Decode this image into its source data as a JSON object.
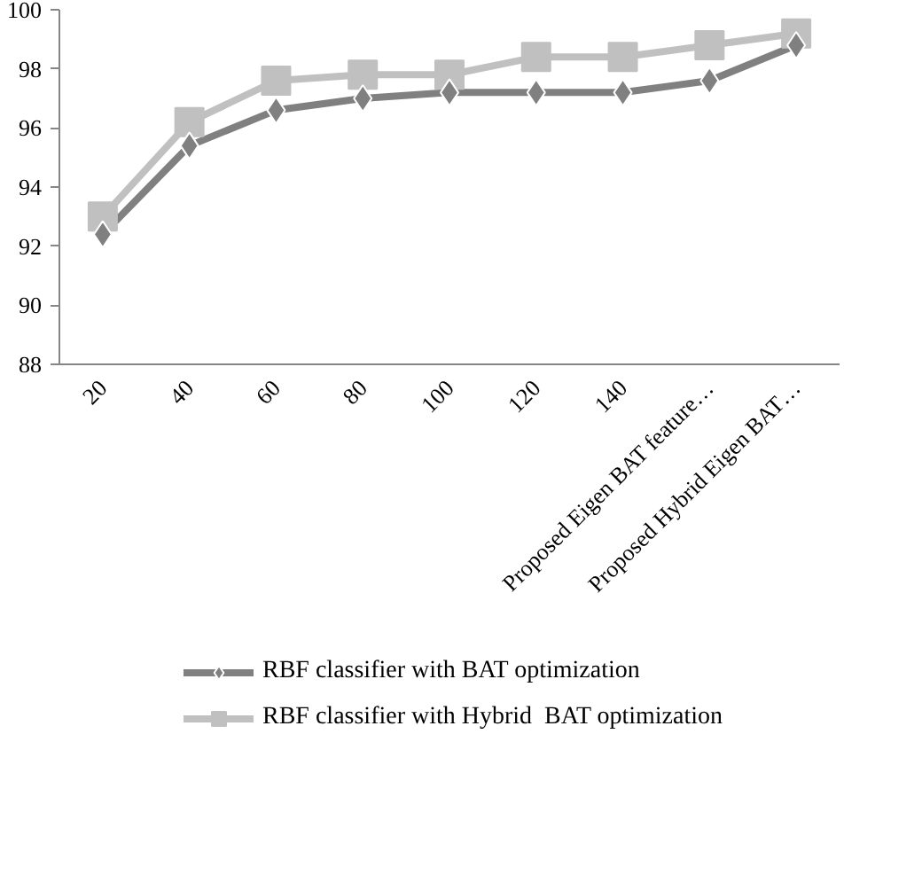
{
  "chart_data": {
    "type": "line",
    "categories": [
      "20",
      "40",
      "60",
      "80",
      "100",
      "120",
      "140",
      "Proposed Eigen BAT feature…",
      "Proposed Hybrid Eigen BAT…"
    ],
    "series": [
      {
        "name": "RBF classifier with BAT optimization",
        "color": "#808080",
        "marker": "diamond",
        "values": [
          92.4,
          95.4,
          96.6,
          97.0,
          97.2,
          97.2,
          97.2,
          97.6,
          98.8
        ]
      },
      {
        "name": "RBF classifier with Hybrid  BAT optimization",
        "color": "#c0c0c0",
        "marker": "square",
        "values": [
          93.0,
          96.2,
          97.6,
          97.8,
          97.8,
          98.4,
          98.4,
          98.8,
          99.2
        ]
      }
    ],
    "ylim": [
      88,
      100
    ],
    "yticks": [
      88,
      90,
      92,
      94,
      96,
      98,
      100
    ],
    "grid": false,
    "legend": "bottom"
  }
}
